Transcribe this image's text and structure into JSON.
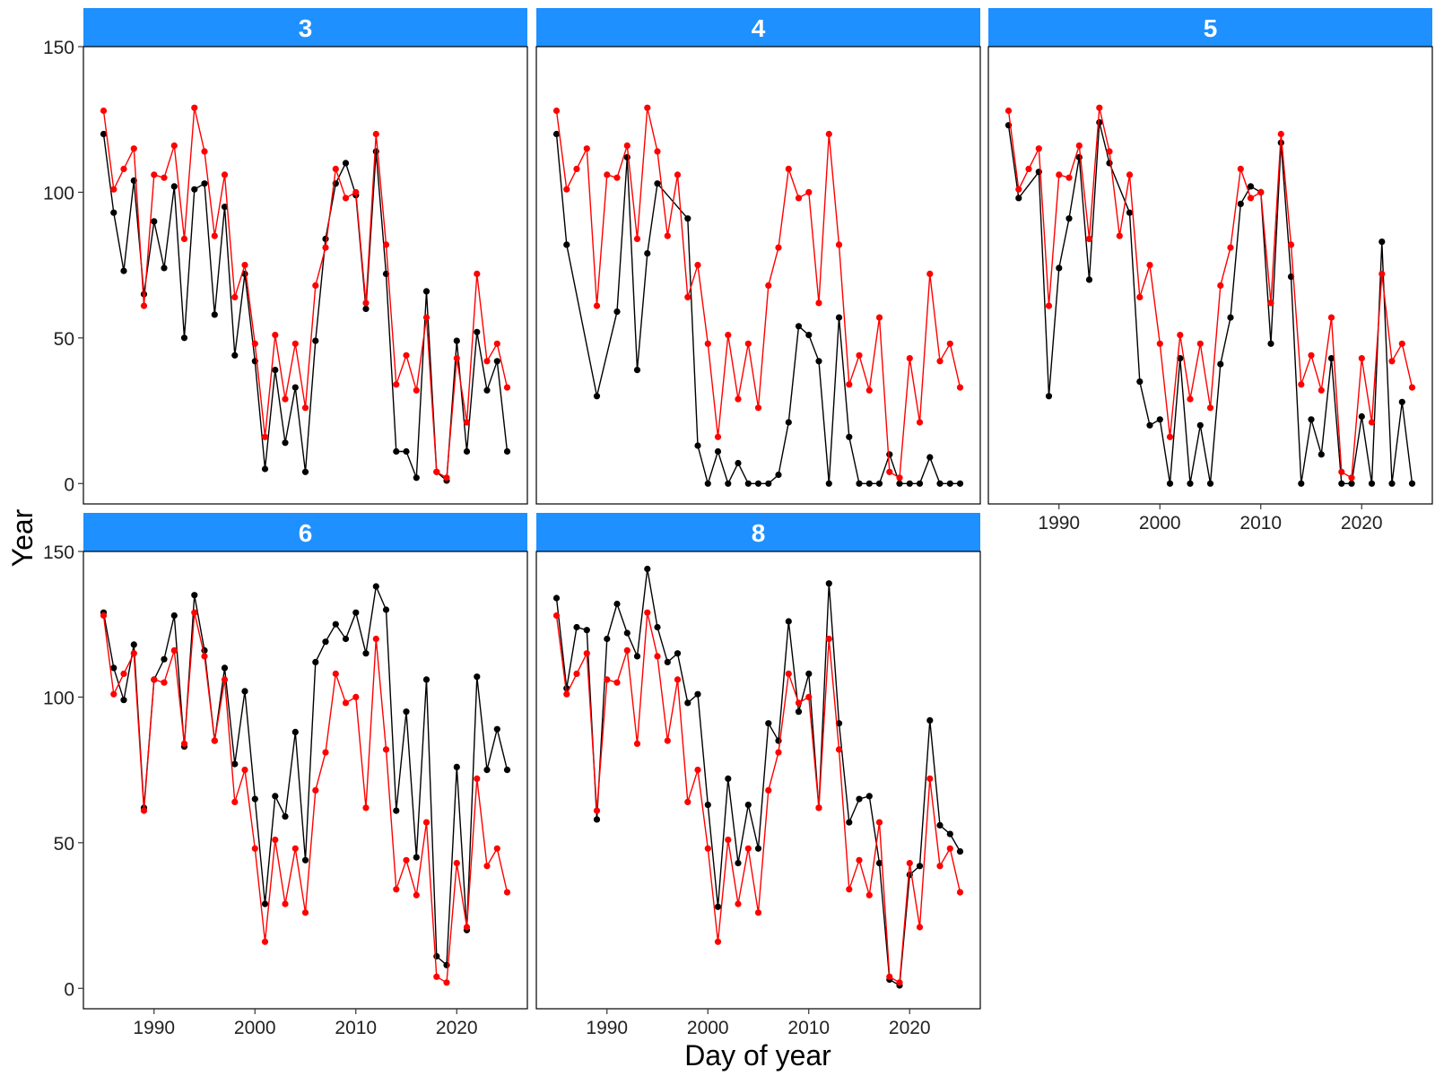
{
  "chart_data": {
    "type": "line",
    "xlabel": "Day of year",
    "ylabel": "Year",
    "xlim": [
      1983,
      2027
    ],
    "ylim": [
      -7,
      150
    ],
    "x_ticks": [
      1990,
      2000,
      2010,
      2020
    ],
    "y_ticks": [
      0,
      50,
      100,
      150
    ],
    "grid": false,
    "colors": {
      "panel_series": "#000000",
      "reference_series": "#ff0000",
      "strip": "#1e90ff"
    },
    "x": [
      1985,
      1986,
      1987,
      1988,
      1989,
      1990,
      1991,
      1992,
      1993,
      1994,
      1995,
      1996,
      1997,
      1998,
      1999,
      2000,
      2001,
      2002,
      2003,
      2004,
      2005,
      2006,
      2007,
      2008,
      2009,
      2010,
      2011,
      2012,
      2013,
      2014,
      2015,
      2016,
      2017,
      2018,
      2019,
      2020,
      2021,
      2022,
      2023,
      2024,
      2025
    ],
    "reference": [
      128,
      101,
      108,
      115,
      61,
      106,
      105,
      116,
      84,
      129,
      114,
      85,
      106,
      64,
      75,
      48,
      16,
      51,
      29,
      48,
      26,
      68,
      81,
      108,
      98,
      100,
      62,
      120,
      82,
      34,
      44,
      32,
      57,
      4,
      2,
      43,
      21,
      72,
      42,
      48,
      33
    ],
    "panels": [
      {
        "label": "3",
        "values": [
          120,
          93,
          73,
          104,
          65,
          90,
          74,
          102,
          50,
          101,
          103,
          58,
          95,
          44,
          72,
          42,
          5,
          39,
          14,
          33,
          4,
          49,
          84,
          103,
          110,
          99,
          60,
          114,
          72,
          11,
          11,
          2,
          66,
          4,
          1,
          49,
          11,
          52,
          32,
          42,
          11
        ]
      },
      {
        "label": "4",
        "values": [
          120,
          82,
          null,
          null,
          30,
          null,
          59,
          112,
          39,
          79,
          103,
          null,
          null,
          91,
          13,
          0,
          11,
          0,
          7,
          0,
          0,
          0,
          3,
          21,
          54,
          51,
          42,
          0,
          57,
          16,
          0,
          0,
          0,
          10,
          0,
          0,
          0,
          9,
          0,
          0,
          0
        ]
      },
      {
        "label": "5",
        "values": [
          123,
          98,
          null,
          107,
          30,
          74,
          91,
          112,
          70,
          124,
          110,
          null,
          93,
          35,
          20,
          22,
          0,
          43,
          0,
          20,
          0,
          41,
          57,
          96,
          102,
          100,
          48,
          117,
          71,
          0,
          22,
          10,
          43,
          0,
          0,
          23,
          0,
          83,
          0,
          28,
          0
        ]
      },
      {
        "label": "6",
        "values": [
          129,
          110,
          99,
          118,
          62,
          106,
          113,
          128,
          83,
          135,
          116,
          85,
          110,
          77,
          102,
          65,
          29,
          66,
          59,
          88,
          44,
          112,
          119,
          125,
          120,
          129,
          115,
          138,
          130,
          61,
          95,
          45,
          106,
          11,
          8,
          76,
          20,
          107,
          75,
          89,
          75
        ]
      },
      {
        "label": "8",
        "values": [
          134,
          103,
          124,
          123,
          58,
          120,
          132,
          122,
          114,
          144,
          124,
          112,
          115,
          98,
          101,
          63,
          28,
          72,
          43,
          63,
          48,
          91,
          85,
          126,
          95,
          108,
          62,
          139,
          91,
          57,
          65,
          66,
          43,
          3,
          1,
          39,
          42,
          92,
          56,
          53,
          47
        ]
      }
    ]
  }
}
